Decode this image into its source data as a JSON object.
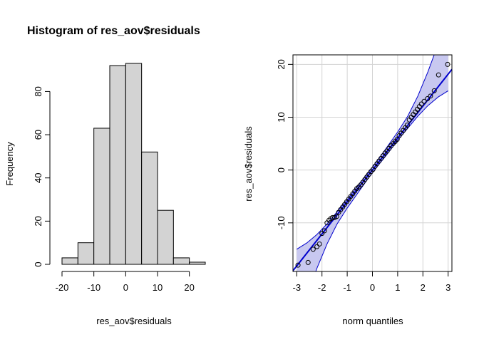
{
  "chart_data": [
    {
      "type": "bar",
      "subtype": "histogram",
      "title": "Histogram of res_aov$residuals",
      "xlabel": "res_aov$residuals",
      "ylabel": "Frequency",
      "bin_edges": [
        -20,
        -15,
        -10,
        -5,
        0,
        5,
        10,
        15,
        20,
        25
      ],
      "values": [
        3,
        10,
        63,
        92,
        93,
        52,
        25,
        3,
        1
      ],
      "xlim": [
        -20,
        25
      ],
      "ylim": [
        0,
        93
      ],
      "xticks": [
        "-20",
        "-10",
        "0",
        "10",
        "20"
      ],
      "xtick_values": [
        -20,
        -10,
        0,
        10,
        20
      ],
      "yticks": [
        "0",
        "20",
        "40",
        "60",
        "80"
      ],
      "ytick_values": [
        0,
        20,
        40,
        60,
        80
      ],
      "bar_color": "#d3d3d3"
    },
    {
      "type": "scatter",
      "subtype": "qq-plot",
      "title": "",
      "xlabel": "norm quantiles",
      "ylabel": "res_aov$residuals",
      "xlim": [
        -3.15,
        3.15
      ],
      "ylim": [
        -19.2,
        21.8
      ],
      "xticks": [
        "-3",
        "-2",
        "-1",
        "0",
        "1",
        "2",
        "3"
      ],
      "xtick_values": [
        -3,
        -2,
        -1,
        0,
        1,
        2,
        3
      ],
      "yticks": [
        "-10",
        "0",
        "10",
        "20"
      ],
      "ytick_values": [
        -10,
        0,
        10,
        20
      ],
      "grid": true,
      "reference_line": {
        "intercept": 0.0,
        "slope": 6.05
      },
      "confidence_band": {
        "x": [
          -3.0,
          -2.6,
          -2.2,
          -1.8,
          -1.4,
          -1.0,
          -0.6,
          -0.2,
          0.2,
          0.6,
          1.0,
          1.4,
          1.8,
          2.2,
          2.6,
          3.0
        ],
        "lower": [
          -30.2,
          -23.8,
          -18.6,
          -14.0,
          -10.2,
          -7.2,
          -4.5,
          -1.8,
          0.7,
          3.1,
          5.6,
          7.9,
          10.2,
          12.2,
          13.8,
          15.0
        ],
        "upper": [
          -15.0,
          -13.8,
          -12.2,
          -10.2,
          -7.9,
          -5.6,
          -3.1,
          -0.7,
          1.8,
          4.5,
          7.2,
          10.2,
          14.0,
          18.6,
          23.8,
          30.2
        ]
      },
      "x": [
        -2.95,
        -2.55,
        -2.35,
        -2.2,
        -2.1,
        -2.0,
        -1.9,
        -1.8,
        -1.72,
        -1.65,
        -1.58,
        -1.5,
        -1.42,
        -1.34,
        -1.26,
        -1.18,
        -1.1,
        -1.02,
        -0.94,
        -0.86,
        -0.78,
        -0.7,
        -0.62,
        -0.54,
        -0.46,
        -0.38,
        -0.3,
        -0.22,
        -0.14,
        -0.06,
        0.02,
        0.1,
        0.18,
        0.26,
        0.34,
        0.42,
        0.5,
        0.58,
        0.66,
        0.74,
        0.82,
        0.9,
        0.98,
        1.06,
        1.14,
        1.22,
        1.3,
        1.38,
        1.46,
        1.54,
        1.62,
        1.7,
        1.78,
        1.86,
        1.94,
        2.05,
        2.18,
        2.3,
        2.45,
        2.62,
        2.98
      ],
      "y": [
        -18.0,
        -17.5,
        -15.0,
        -14.5,
        -14.0,
        -12.0,
        -11.5,
        -10.0,
        -9.5,
        -9.2,
        -9.0,
        -9.0,
        -8.8,
        -8.0,
        -7.5,
        -7.0,
        -6.5,
        -6.0,
        -5.5,
        -5.0,
        -4.5,
        -4.0,
        -3.5,
        -3.2,
        -2.8,
        -2.3,
        -1.8,
        -1.3,
        -0.8,
        -0.3,
        0.1,
        0.7,
        1.2,
        1.7,
        2.2,
        2.7,
        3.2,
        3.6,
        4.1,
        4.6,
        5.0,
        5.4,
        5.8,
        6.5,
        7.0,
        7.5,
        8.0,
        8.5,
        9.5,
        10.0,
        10.5,
        11.0,
        11.5,
        12.0,
        12.5,
        13.0,
        13.5,
        14.0,
        15.0,
        18.0,
        20.0
      ],
      "point_color": "#000000",
      "line_color": "#0000cd",
      "band_color": "#c8c8f0"
    }
  ]
}
